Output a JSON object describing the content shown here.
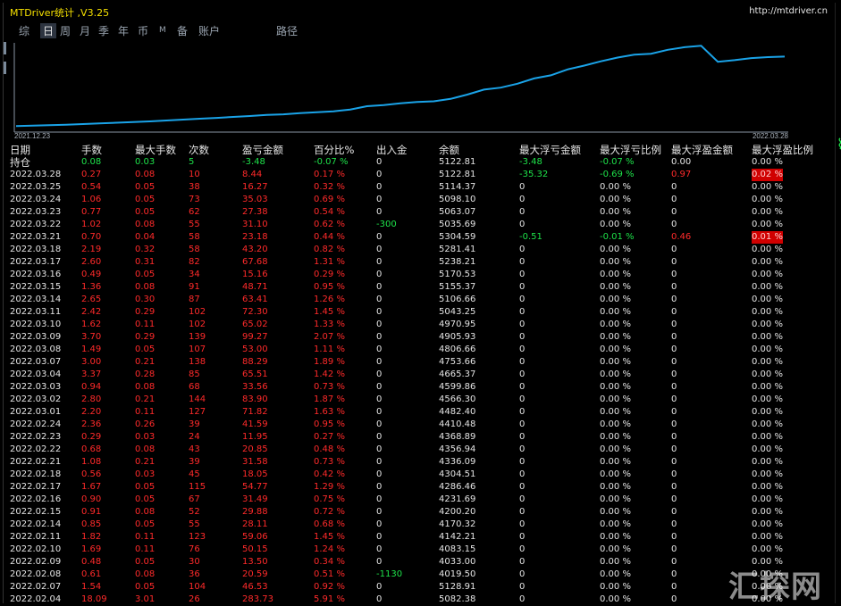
{
  "window": {
    "title": "MTDriver统计 ,V3.25",
    "url": "http://mtdriver.cn"
  },
  "tabs": [
    "综",
    "日",
    "周",
    "月",
    "季",
    "年",
    "币",
    "M",
    "备",
    "账户",
    "路径"
  ],
  "active_tab": "日",
  "chart": {
    "start_label": "2021.12.23",
    "end_label": "2022.03.28",
    "line_color": "#1aa3e8",
    "equity": [
      3950,
      3958,
      3966,
      3974,
      3985,
      3996,
      4008,
      4019,
      4030,
      4045,
      4060,
      4075,
      4089,
      4105,
      4120,
      4139,
      4150,
      4170,
      4185,
      4200,
      4231,
      4286,
      4305,
      4336,
      4357,
      4369,
      4410,
      4482,
      4566,
      4600,
      4665,
      4754,
      4807,
      4906,
      4971,
      5043,
      5107,
      5155,
      5171,
      5238,
      5281,
      5305,
      5036,
      5063,
      5098,
      5114,
      5123
    ]
  },
  "columns": [
    "日期",
    "手数",
    "最大手数",
    "次数",
    "盈亏金额",
    "百分比%",
    "出入金",
    "余额",
    "最大浮亏金额",
    "最大浮亏比例",
    "最大浮盈金额",
    "最大浮盈比例"
  ],
  "position_row": {
    "label": "持仓",
    "lots": "0.08",
    "max_lots": "0.03",
    "count": "5",
    "pl": "-3.48",
    "pct": "-0.07 %",
    "io": "0",
    "balance": "5122.81",
    "max_float_loss": "-3.48",
    "max_float_loss_pct": "-0.07 %",
    "max_float_profit": "0.00",
    "max_float_profit_pct": "0.00 %"
  },
  "rows": [
    [
      "2022.03.28",
      "0.27",
      "0.08",
      "10",
      "8.44",
      "0.17 %",
      "0",
      "5122.81",
      "-35.32",
      "-0.69 %",
      "0.97",
      "0.02 %"
    ],
    [
      "2022.03.25",
      "0.54",
      "0.05",
      "38",
      "16.27",
      "0.32 %",
      "0",
      "5114.37",
      "0",
      "0.00 %",
      "0",
      "0.00 %"
    ],
    [
      "2022.03.24",
      "1.06",
      "0.05",
      "73",
      "35.03",
      "0.69 %",
      "0",
      "5098.10",
      "0",
      "0.00 %",
      "0",
      "0.00 %"
    ],
    [
      "2022.03.23",
      "0.77",
      "0.05",
      "62",
      "27.38",
      "0.54 %",
      "0",
      "5063.07",
      "0",
      "0.00 %",
      "0",
      "0.00 %"
    ],
    [
      "2022.03.22",
      "1.02",
      "0.08",
      "55",
      "31.10",
      "0.62 %",
      "-300",
      "5035.69",
      "0",
      "0.00 %",
      "0",
      "0.00 %"
    ],
    [
      "2022.03.21",
      "0.70",
      "0.04",
      "58",
      "23.18",
      "0.44 %",
      "0",
      "5304.59",
      "-0.51",
      "-0.01 %",
      "0.46",
      "0.01 %"
    ],
    [
      "2022.03.18",
      "2.19",
      "0.32",
      "58",
      "43.20",
      "0.82 %",
      "0",
      "5281.41",
      "0",
      "0.00 %",
      "0",
      "0.00 %"
    ],
    [
      "2022.03.17",
      "2.60",
      "0.31",
      "82",
      "67.68",
      "1.31 %",
      "0",
      "5238.21",
      "0",
      "0.00 %",
      "0",
      "0.00 %"
    ],
    [
      "2022.03.16",
      "0.49",
      "0.05",
      "34",
      "15.16",
      "0.29 %",
      "0",
      "5170.53",
      "0",
      "0.00 %",
      "0",
      "0.00 %"
    ],
    [
      "2022.03.15",
      "1.36",
      "0.08",
      "91",
      "48.71",
      "0.95 %",
      "0",
      "5155.37",
      "0",
      "0.00 %",
      "0",
      "0.00 %"
    ],
    [
      "2022.03.14",
      "2.65",
      "0.30",
      "87",
      "63.41",
      "1.26 %",
      "0",
      "5106.66",
      "0",
      "0.00 %",
      "0",
      "0.00 %"
    ],
    [
      "2022.03.11",
      "2.42",
      "0.29",
      "102",
      "72.30",
      "1.45 %",
      "0",
      "5043.25",
      "0",
      "0.00 %",
      "0",
      "0.00 %"
    ],
    [
      "2022.03.10",
      "1.62",
      "0.11",
      "102",
      "65.02",
      "1.33 %",
      "0",
      "4970.95",
      "0",
      "0.00 %",
      "0",
      "0.00 %"
    ],
    [
      "2022.03.09",
      "3.70",
      "0.29",
      "139",
      "99.27",
      "2.07 %",
      "0",
      "4905.93",
      "0",
      "0.00 %",
      "0",
      "0.00 %"
    ],
    [
      "2022.03.08",
      "1.49",
      "0.05",
      "107",
      "53.00",
      "1.11 %",
      "0",
      "4806.66",
      "0",
      "0.00 %",
      "0",
      "0.00 %"
    ],
    [
      "2022.03.07",
      "3.00",
      "0.21",
      "138",
      "88.29",
      "1.89 %",
      "0",
      "4753.66",
      "0",
      "0.00 %",
      "0",
      "0.00 %"
    ],
    [
      "2022.03.04",
      "3.37",
      "0.28",
      "85",
      "65.51",
      "1.42 %",
      "0",
      "4665.37",
      "0",
      "0.00 %",
      "0",
      "0.00 %"
    ],
    [
      "2022.03.03",
      "0.94",
      "0.08",
      "68",
      "33.56",
      "0.73 %",
      "0",
      "4599.86",
      "0",
      "0.00 %",
      "0",
      "0.00 %"
    ],
    [
      "2022.03.02",
      "2.80",
      "0.21",
      "144",
      "83.90",
      "1.87 %",
      "0",
      "4566.30",
      "0",
      "0.00 %",
      "0",
      "0.00 %"
    ],
    [
      "2022.03.01",
      "2.20",
      "0.11",
      "127",
      "71.82",
      "1.63 %",
      "0",
      "4482.40",
      "0",
      "0.00 %",
      "0",
      "0.00 %"
    ],
    [
      "2022.02.24",
      "2.36",
      "0.26",
      "39",
      "41.59",
      "0.95 %",
      "0",
      "4410.48",
      "0",
      "0.00 %",
      "0",
      "0.00 %"
    ],
    [
      "2022.02.23",
      "0.29",
      "0.03",
      "24",
      "11.95",
      "0.27 %",
      "0",
      "4368.89",
      "0",
      "0.00 %",
      "0",
      "0.00 %"
    ],
    [
      "2022.02.22",
      "0.68",
      "0.08",
      "43",
      "20.85",
      "0.48 %",
      "0",
      "4356.94",
      "0",
      "0.00 %",
      "0",
      "0.00 %"
    ],
    [
      "2022.02.21",
      "1.08",
      "0.21",
      "39",
      "31.58",
      "0.73 %",
      "0",
      "4336.09",
      "0",
      "0.00 %",
      "0",
      "0.00 %"
    ],
    [
      "2022.02.18",
      "0.56",
      "0.03",
      "45",
      "18.05",
      "0.42 %",
      "0",
      "4304.51",
      "0",
      "0.00 %",
      "0",
      "0.00 %"
    ],
    [
      "2022.02.17",
      "1.67",
      "0.05",
      "115",
      "54.77",
      "1.29 %",
      "0",
      "4286.46",
      "0",
      "0.00 %",
      "0",
      "0.00 %"
    ],
    [
      "2022.02.16",
      "0.90",
      "0.05",
      "67",
      "31.49",
      "0.75 %",
      "0",
      "4231.69",
      "0",
      "0.00 %",
      "0",
      "0.00 %"
    ],
    [
      "2022.02.15",
      "0.91",
      "0.08",
      "52",
      "29.88",
      "0.72 %",
      "0",
      "4200.20",
      "0",
      "0.00 %",
      "0",
      "0.00 %"
    ],
    [
      "2022.02.14",
      "0.85",
      "0.05",
      "55",
      "28.11",
      "0.68 %",
      "0",
      "4170.32",
      "0",
      "0.00 %",
      "0",
      "0.00 %"
    ],
    [
      "2022.02.11",
      "1.82",
      "0.11",
      "123",
      "59.06",
      "1.45 %",
      "0",
      "4142.21",
      "0",
      "0.00 %",
      "0",
      "0.00 %"
    ],
    [
      "2022.02.10",
      "1.69",
      "0.11",
      "76",
      "50.15",
      "1.24 %",
      "0",
      "4083.15",
      "0",
      "0.00 %",
      "0",
      "0.00 %"
    ],
    [
      "2022.02.09",
      "0.48",
      "0.05",
      "30",
      "13.50",
      "0.34 %",
      "0",
      "4033.00",
      "0",
      "0.00 %",
      "0",
      "0.00 %"
    ],
    [
      "2022.02.08",
      "0.61",
      "0.08",
      "36",
      "20.59",
      "0.51 %",
      "-1130",
      "4019.50",
      "0",
      "0.00 %",
      "0",
      "0.00 %"
    ],
    [
      "2022.02.07",
      "1.54",
      "0.05",
      "104",
      "46.53",
      "0.92 %",
      "0",
      "5128.91",
      "0",
      "0.00 %",
      "0",
      "0.00 %"
    ],
    [
      "2022.02.04",
      "18.09",
      "3.01",
      "26",
      "283.73",
      "5.91 %",
      "0",
      "5082.38",
      "0",
      "0.00 %",
      "0",
      "0.00 %"
    ]
  ],
  "watermark": "汇探网"
}
